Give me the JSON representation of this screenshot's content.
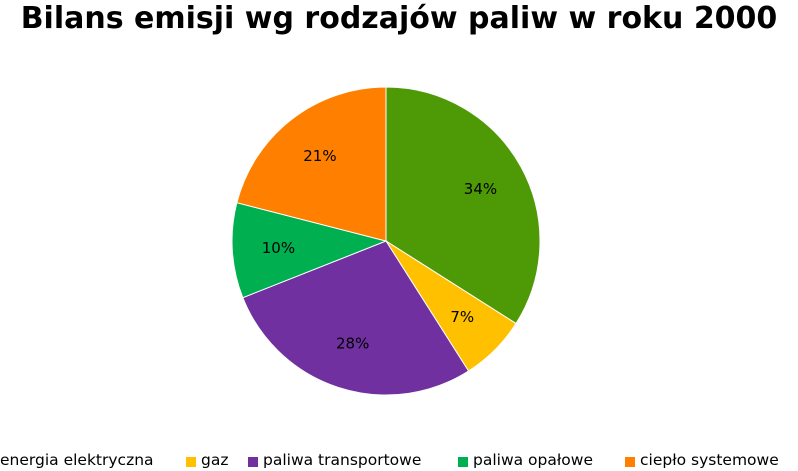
{
  "chart_data": {
    "type": "pie",
    "title": "Bilans emisji wg rodzajów paliw w roku 2000",
    "legend_position": "bottom",
    "slices": [
      {
        "name": "energia elektryczna",
        "value": 34,
        "label": "34%",
        "color": "#4E9A06"
      },
      {
        "name": "gaz",
        "value": 7,
        "label": "7%",
        "color": "#FFC000"
      },
      {
        "name": "paliwa transportowe",
        "value": 28,
        "label": "28%",
        "color": "#7030A0"
      },
      {
        "name": "paliwa opałowe",
        "value": 10,
        "label": "10%",
        "color": "#00B050"
      },
      {
        "name": "ciepło systemowe",
        "value": 21,
        "label": "21%",
        "color": "#FF8000"
      }
    ]
  }
}
